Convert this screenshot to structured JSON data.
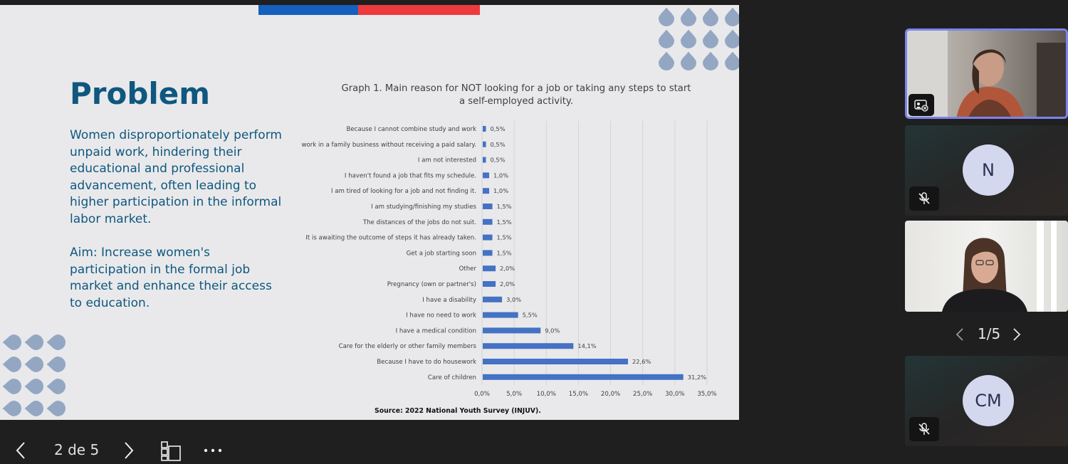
{
  "slide": {
    "title": "Problem",
    "paragraph1": "Women disproportionately perform unpaid work, hindering their educational and professional advancement, often leading to higher participation in the informal labor market.",
    "paragraph2": "Aim: Increase women's participation in the formal job market and enhance their access to education.",
    "colors": {
      "accent_blue": "#1560bd",
      "accent_red": "#ec3a3f",
      "text": "#0f577f",
      "dots": "#93a7c3",
      "bar": "#4472c4"
    }
  },
  "chart_data": {
    "type": "bar",
    "orientation": "horizontal",
    "title_line1": "Graph 1. Main reason for NOT looking for a job or taking any steps to start",
    "title_line2": "a self-employed activity.",
    "source": "Source: 2022 National Youth Survey (INJUV).",
    "categories": [
      "Because I cannot combine study and work",
      "I work in a family business without receiving a paid salary.",
      "I am not interested",
      "I haven't found a job that fits my schedule.",
      "I am tired of looking for a job and not finding it.",
      "I am studying/finishing my studies",
      "The distances of the jobs do not suit.",
      "It is awaiting the outcome of steps it has already taken.",
      "Get a job starting soon",
      "Other",
      "Pregnancy (own or partner's)",
      "I have a disability",
      "I have no need to work",
      "I have a medical condition",
      "Care for the elderly or other family members",
      "Because I have to do housework",
      "Care of children"
    ],
    "values": [
      0.5,
      0.5,
      0.5,
      1.0,
      1.0,
      1.5,
      1.5,
      1.5,
      1.5,
      2.0,
      2.0,
      3.0,
      5.5,
      9.0,
      14.1,
      22.6,
      31.2
    ],
    "value_labels": [
      "0,5%",
      "0,5%",
      "0,5%",
      "1,0%",
      "1,0%",
      "1,5%",
      "1,5%",
      "1,5%",
      "1,5%",
      "2,0%",
      "2,0%",
      "3,0%",
      "5,5%",
      "9,0%",
      "14,1%",
      "22,6%",
      "31,2%"
    ],
    "xlim": [
      0,
      35
    ],
    "tick_values": [
      0,
      5,
      10,
      15,
      20,
      25,
      30,
      35
    ],
    "tick_labels": [
      "0,0%",
      "5,0%",
      "10,0%",
      "15,0%",
      "20,0%",
      "25,0%",
      "30,0%",
      "35,0%"
    ],
    "grid": true,
    "bar_color": "#4472c4"
  },
  "toolbar": {
    "slide_counter": "2 de 5",
    "prev_icon": "chevron-left-icon",
    "next_icon": "chevron-right-icon",
    "thumbnails_icon": "slides-grid-icon",
    "more_icon": "more-options-icon"
  },
  "participants": {
    "tile2_initial": "N",
    "tile4_initials": "CM",
    "pager": "1/5",
    "active_border": "#7b83eb"
  }
}
